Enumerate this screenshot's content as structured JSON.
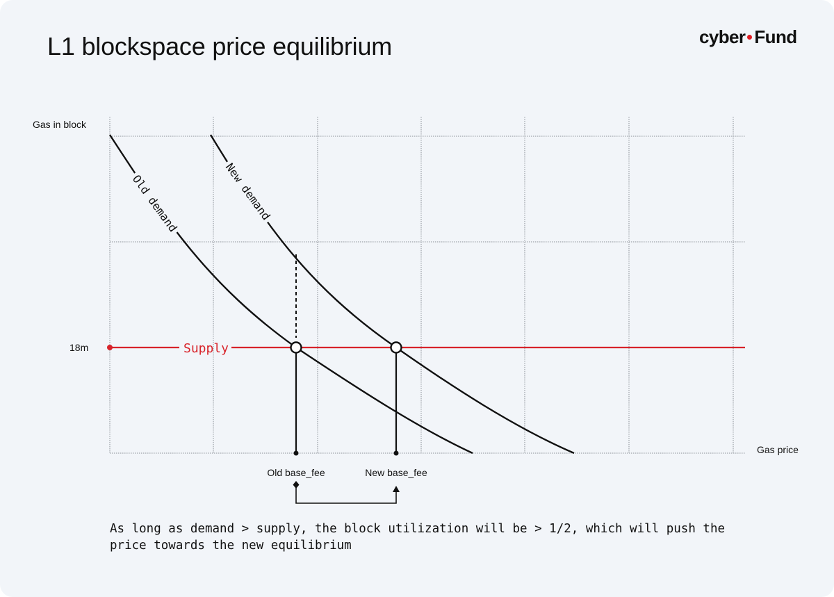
{
  "header": {
    "title": "L1 blockspace price equilibrium",
    "logo_left": "cyber",
    "logo_right": "Fund"
  },
  "diagram": {
    "y_axis_label": "Gas in block",
    "x_axis_label": "Gas price",
    "supply_tick_label": "18m",
    "supply_label": "Supply",
    "old_demand_label": "Old demand",
    "new_demand_label": "New demand",
    "old_fee_label": "Old base_fee",
    "new_fee_label": "New base_fee"
  },
  "note": "As long as demand > supply, the block utilization will be > 1/2, which will push the price towards the new equilibrium",
  "colors": {
    "background": "#f2f5f9",
    "supply": "#d8232a",
    "curve": "#111111",
    "grid": "#8a8f96"
  }
}
